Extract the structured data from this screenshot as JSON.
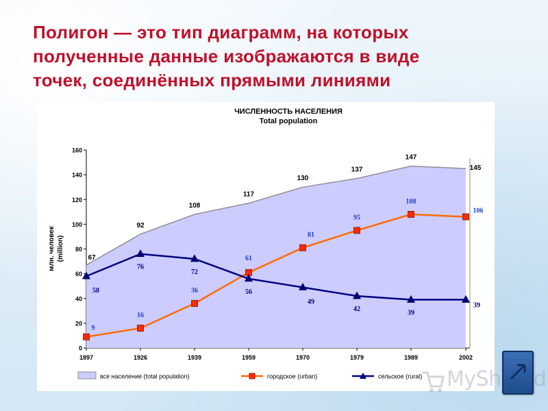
{
  "slide": {
    "heading_lines": [
      "Полигон — это тип диаграмм, на которых",
      "полученные данные изображаются в виде",
      "точек, соединённых прямыми линиями"
    ],
    "watermark_text": "MyShared",
    "nav_icon": "arrow-up-right-icon",
    "colors": {
      "heading": "#c0102a",
      "area_fill": "#ccccff",
      "urban": "#ff6a00",
      "rural": "#000080"
    }
  },
  "chart_data": {
    "type": "line",
    "title": "ЧИСЛЕННОСТЬ НАСЕЛЕНИЯ",
    "subtitle": "Total population",
    "ylabel_lines": [
      "млн. человек",
      "(million)"
    ],
    "ylim": [
      0,
      160
    ],
    "yticks": [
      0,
      20,
      40,
      60,
      80,
      100,
      120,
      140,
      160
    ],
    "categories": [
      "1897",
      "1926",
      "1939",
      "1959",
      "1970",
      "1979",
      "1989",
      "2002"
    ],
    "x": [
      1897,
      1926,
      1939,
      1959,
      1970,
      1979,
      1989,
      2002
    ],
    "grid": false,
    "legend_position": "bottom",
    "series": [
      {
        "name": "все население (total population)",
        "legend_label": "все население    (total population)",
        "style": "area",
        "values": [
          67,
          92,
          108,
          117,
          130,
          137,
          147,
          145
        ]
      },
      {
        "name": "городское (urban)",
        "legend_label": "городское     (urban)",
        "style": "line-square",
        "values": [
          9,
          16,
          36,
          61,
          81,
          95,
          108,
          106
        ]
      },
      {
        "name": "сельское (rural)",
        "legend_label": "сельское     (rural)",
        "style": "line-triangle",
        "values": [
          58,
          76,
          72,
          56,
          49,
          42,
          39,
          39
        ]
      }
    ]
  }
}
